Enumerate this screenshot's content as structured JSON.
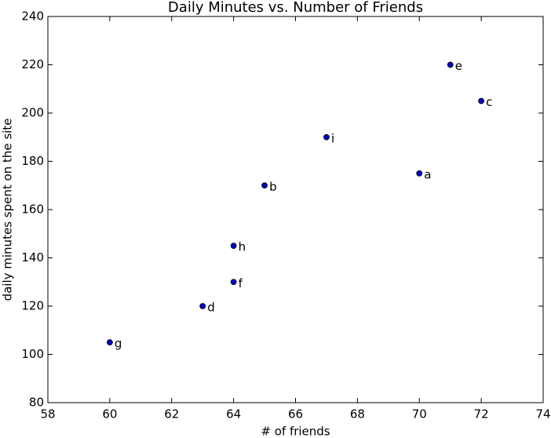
{
  "chart_data": {
    "type": "scatter",
    "title": "Daily Minutes vs. Number of Friends",
    "x_label": "# of friends",
    "y_label": "daily minutes spent on the site",
    "x": [
      70,
      65,
      72,
      63,
      71,
      64,
      60,
      64,
      67
    ],
    "values": [
      175,
      170,
      205,
      120,
      220,
      130,
      105,
      145,
      190
    ],
    "labels": [
      "a",
      "b",
      "c",
      "d",
      "e",
      "f",
      "g",
      "h",
      "i"
    ],
    "color": "#0000bf",
    "xlim": [
      58,
      74
    ],
    "xticks": [
      58,
      60,
      62,
      64,
      66,
      68,
      70,
      72,
      74
    ],
    "ylim": [
      80,
      240
    ],
    "yticks": [
      80,
      100,
      120,
      140,
      160,
      180,
      200,
      220,
      240
    ]
  }
}
